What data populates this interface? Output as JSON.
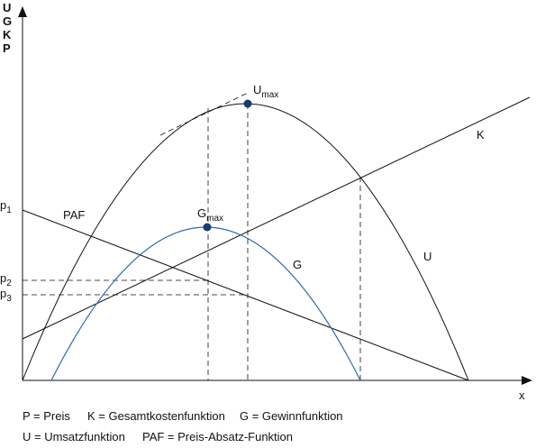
{
  "y_axis_label": [
    "U",
    "G",
    "K",
    "P"
  ],
  "x_axis_label": "x",
  "labels": {
    "p1": {
      "base": "p",
      "sub": "1"
    },
    "p2": {
      "base": "p",
      "sub": "2"
    },
    "p3": {
      "base": "p",
      "sub": "3"
    },
    "paf": "PAF",
    "u_max": {
      "base": "U",
      "sub": "max"
    },
    "g_max": {
      "base": "G",
      "sub": "max"
    },
    "k": "K",
    "g": "G",
    "u": "U"
  },
  "legend": [
    [
      "P = Preis",
      "K = Gesamtkostenfunktion",
      "G = Gewinnfunktion"
    ],
    [
      "U = Umsatzfunktion",
      "PAF = Preis-Absatz-Funktion"
    ]
  ]
}
